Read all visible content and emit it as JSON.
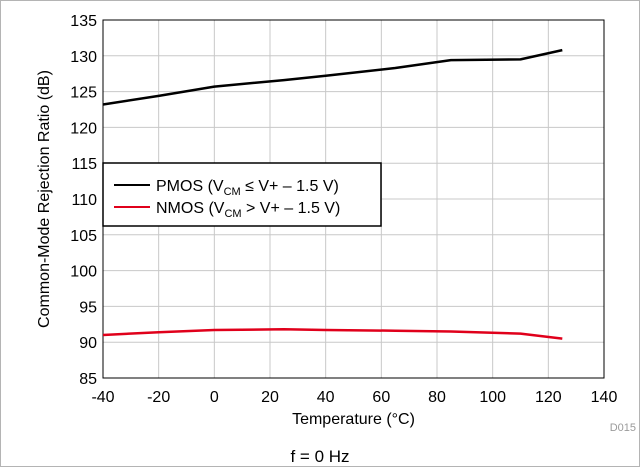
{
  "chart_data": {
    "type": "line",
    "xlabel": "Temperature (°C)",
    "ylabel": "Common-Mode Rejection Ratio (dB)",
    "xlim": [
      -40,
      140
    ],
    "ylim": [
      85,
      135
    ],
    "xticks": [
      -40,
      -20,
      0,
      20,
      40,
      60,
      80,
      100,
      120,
      140
    ],
    "yticks": [
      85,
      90,
      95,
      100,
      105,
      110,
      115,
      120,
      125,
      130,
      135
    ],
    "xtick_labels": [
      "-40",
      "-20",
      "0",
      "20",
      "40",
      "60",
      "80",
      "100",
      "120",
      "140"
    ],
    "ytick_labels": [
      "85",
      "90",
      "95",
      "100",
      "105",
      "110",
      "115",
      "120",
      "125",
      "130",
      "135"
    ],
    "grid": true,
    "legend_position": "middle-left",
    "series": [
      {
        "color": "#000000",
        "legend": {
          "pre": "PMOS (V",
          "sub": "CM",
          "post": " ≤ V+ – 1.5 V)"
        },
        "x": [
          -40,
          -20,
          0,
          25,
          40,
          65,
          85,
          110,
          125
        ],
        "y": [
          123.2,
          124.4,
          125.7,
          126.6,
          127.2,
          128.3,
          129.4,
          129.5,
          130.8
        ]
      },
      {
        "color": "#e0001b",
        "legend": {
          "pre": "NMOS (V",
          "sub": "CM",
          "post": " > V+ – 1.5 V)"
        },
        "x": [
          -40,
          -20,
          0,
          25,
          40,
          65,
          85,
          110,
          125
        ],
        "y": [
          91.0,
          91.4,
          91.7,
          91.8,
          91.7,
          91.6,
          91.5,
          91.2,
          90.5
        ]
      }
    ]
  },
  "figure_id": "D015",
  "caption": "f = 0 Hz"
}
